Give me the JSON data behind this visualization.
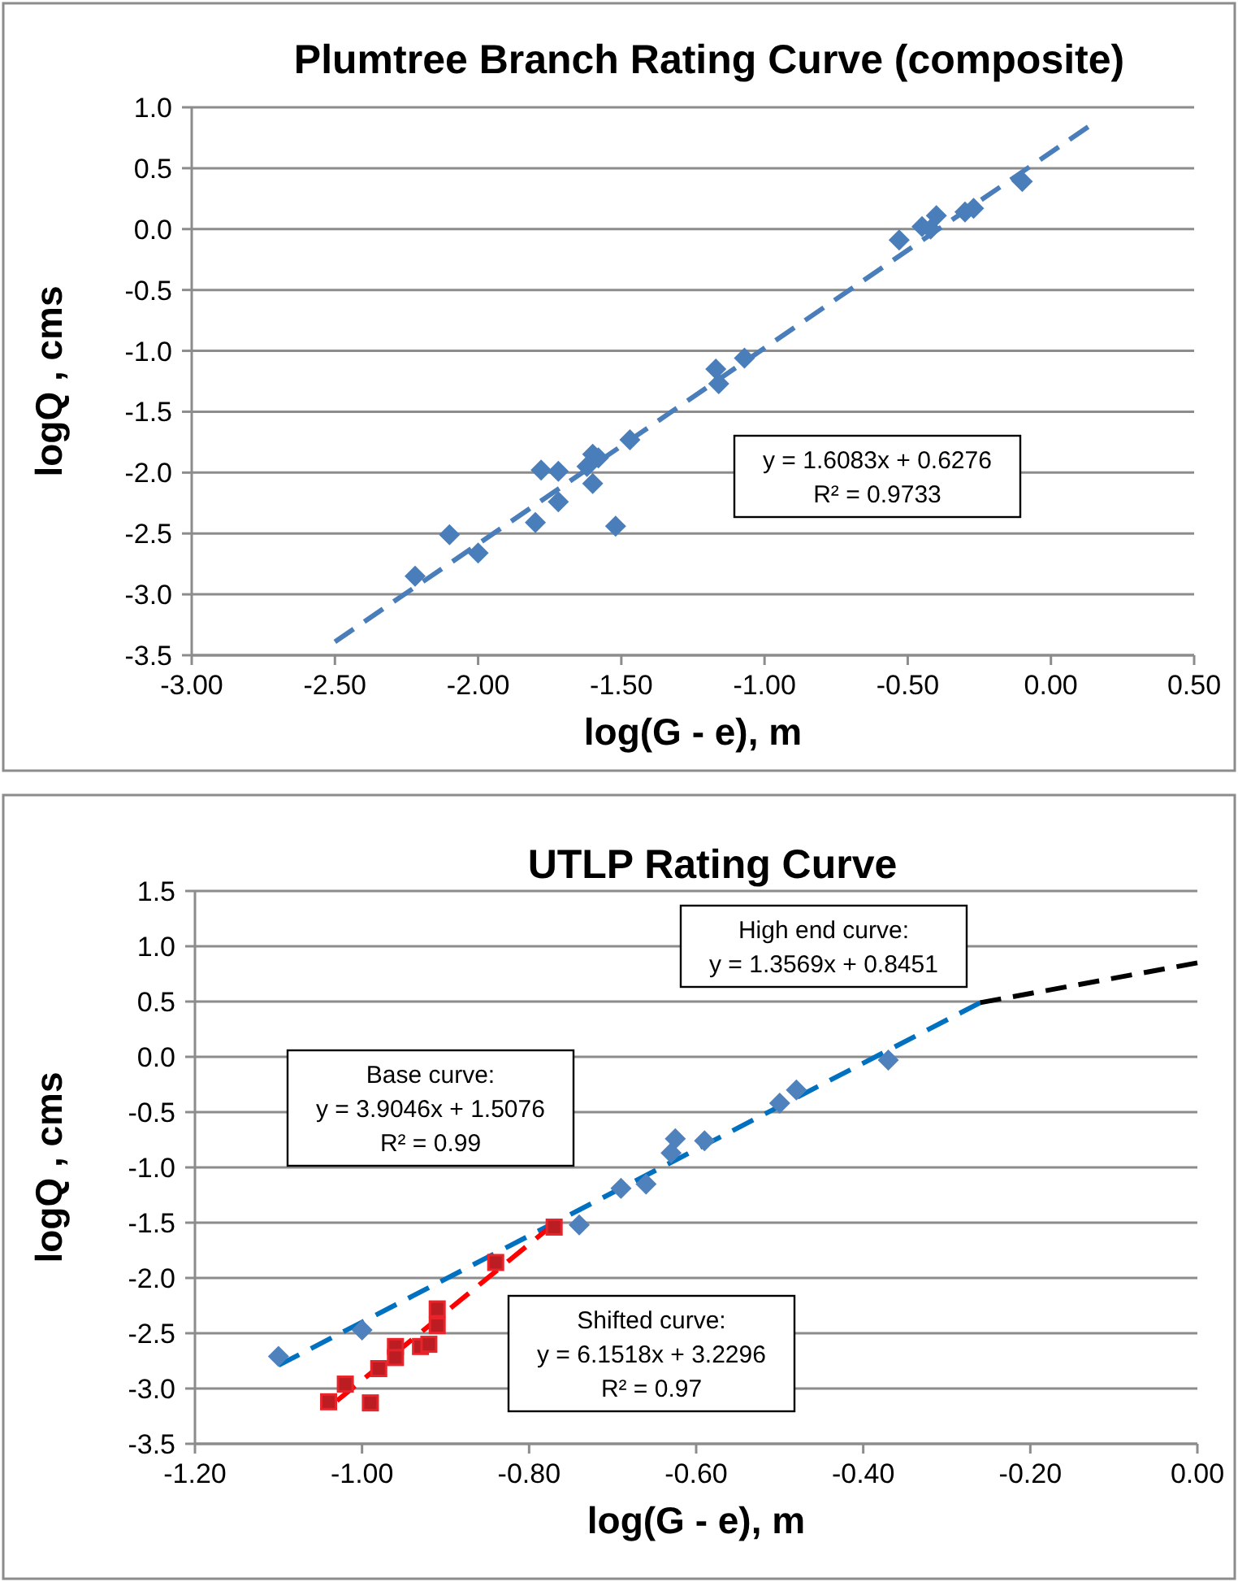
{
  "chart_data": [
    {
      "type": "scatter",
      "title": "Plumtree Branch Rating Curve (composite)",
      "xlabel": "log(G - e), m",
      "ylabel": "logQ , cms",
      "xlim": [
        -3,
        0.5
      ],
      "ylim": [
        -3.5,
        1
      ],
      "xticks": [
        {
          "value": -3,
          "label": "-3.00"
        },
        {
          "value": -2.5,
          "label": "-2.50"
        },
        {
          "value": -2,
          "label": "-2.00"
        },
        {
          "value": -1.5,
          "label": "-1.50"
        },
        {
          "value": -1,
          "label": "-1.00"
        },
        {
          "value": -0.5,
          "label": "-0.50"
        },
        {
          "value": 0,
          "label": "0.00"
        },
        {
          "value": 0.5,
          "label": "0.50"
        }
      ],
      "yticks": [
        {
          "value": -3.5,
          "label": "-3.5"
        },
        {
          "value": -3,
          "label": "-3.0"
        },
        {
          "value": -2.5,
          "label": "-2.5"
        },
        {
          "value": -2,
          "label": "-2.0"
        },
        {
          "value": -1.5,
          "label": "-1.5"
        },
        {
          "value": -1,
          "label": "-1.0"
        },
        {
          "value": -0.5,
          "label": "-0.5"
        },
        {
          "value": 0,
          "label": "0.0"
        },
        {
          "value": 0.5,
          "label": "0.5"
        },
        {
          "value": 1,
          "label": "1.0"
        }
      ],
      "grid": "y",
      "annotations": [
        "y = 1.6083x + 0.6276\nR² = 0.9733"
      ],
      "series": [
        {
          "marker": "diamond",
          "color": "#4a7ebb",
          "x": [
            -2.22,
            -2.1,
            -2.0,
            -1.78,
            -1.8,
            -1.72,
            -1.72,
            -1.62,
            -1.6,
            -1.58,
            -1.6,
            -1.52,
            -1.47,
            -1.17,
            -1.16,
            -1.07,
            -0.53,
            -0.45,
            -0.42,
            -0.4,
            -0.3,
            -0.27,
            -0.1
          ],
          "values": [
            -2.85,
            -2.51,
            -2.66,
            -1.98,
            -2.41,
            -1.99,
            -2.24,
            -1.95,
            -1.85,
            -1.88,
            -2.09,
            -2.44,
            -1.73,
            -1.15,
            -1.27,
            -1.06,
            -0.09,
            0.02,
            0.0,
            0.11,
            0.14,
            0.17,
            0.39
          ]
        },
        {
          "type": "line",
          "marker": "none",
          "line_style": "dashed",
          "color": "#4a7ebb",
          "x": [
            -2.5,
            0.13
          ],
          "values": [
            -3.39,
            0.84
          ]
        }
      ]
    },
    {
      "type": "scatter",
      "title": "UTLP Rating Curve",
      "xlabel": "log(G - e), m",
      "ylabel": "logQ , cms",
      "xlim": [
        -1.2,
        0
      ],
      "ylim": [
        -3.5,
        1.5
      ],
      "xticks": [
        {
          "value": -1.2,
          "label": "-1.20"
        },
        {
          "value": -1,
          "label": "-1.00"
        },
        {
          "value": -0.8,
          "label": "-0.80"
        },
        {
          "value": -0.6,
          "label": "-0.60"
        },
        {
          "value": -0.4,
          "label": "-0.40"
        },
        {
          "value": -0.2,
          "label": "-0.20"
        },
        {
          "value": 0,
          "label": "0.00"
        }
      ],
      "yticks": [
        {
          "value": -3.5,
          "label": "-3.5"
        },
        {
          "value": -3,
          "label": "-3.0"
        },
        {
          "value": -2.5,
          "label": "-2.5"
        },
        {
          "value": -2,
          "label": "-2.0"
        },
        {
          "value": -1.5,
          "label": "-1.5"
        },
        {
          "value": -1,
          "label": "-1.0"
        },
        {
          "value": -0.5,
          "label": "-0.5"
        },
        {
          "value": 0,
          "label": "0.0"
        },
        {
          "value": 0.5,
          "label": "0.5"
        },
        {
          "value": 1,
          "label": "1.0"
        },
        {
          "value": 1.5,
          "label": "1.5"
        }
      ],
      "grid": "y",
      "annotations": [
        "High end curve:\ny = 1.3569x + 0.8451",
        "Base curve:\ny = 3.9046x + 1.5076\nR² = 0.99",
        "Shifted curve:\ny = 6.1518x + 3.2296\nR² = 0.97"
      ],
      "series": [
        {
          "type": "line",
          "marker": "none",
          "line_style": "dashed",
          "color": "#0070c0",
          "x": [
            -1.1,
            -0.26
          ],
          "values": [
            -2.79,
            0.49
          ]
        },
        {
          "type": "line",
          "marker": "none",
          "line_style": "dashed",
          "color": "#ff0000",
          "x": [
            -1.03,
            -0.77
          ],
          "values": [
            -3.11,
            -1.51
          ]
        },
        {
          "type": "line",
          "marker": "none",
          "line_style": "dashed",
          "color": "#000000",
          "x": [
            -0.26,
            0
          ],
          "values": [
            0.49,
            0.85
          ]
        },
        {
          "marker": "diamond",
          "color": "#4f81bd",
          "x": [
            -1.1,
            -1.0,
            -0.74,
            -0.69,
            -0.66,
            -0.63,
            -0.625,
            -0.59,
            -0.5,
            -0.48,
            -0.37
          ],
          "values": [
            -2.71,
            -2.47,
            -1.52,
            -1.19,
            -1.15,
            -0.87,
            -0.74,
            -0.76,
            -0.42,
            -0.3,
            -0.03
          ]
        },
        {
          "marker": "square",
          "color": "#e8242b",
          "x": [
            -1.04,
            -1.02,
            -0.99,
            -0.98,
            -0.96,
            -0.96,
            -0.93,
            -0.92,
            -0.91,
            -0.91,
            -0.84,
            -0.77
          ],
          "values": [
            -3.12,
            -2.96,
            -3.13,
            -2.82,
            -2.62,
            -2.72,
            -2.62,
            -2.6,
            -2.43,
            -2.28,
            -1.86,
            -1.54
          ]
        }
      ]
    }
  ]
}
